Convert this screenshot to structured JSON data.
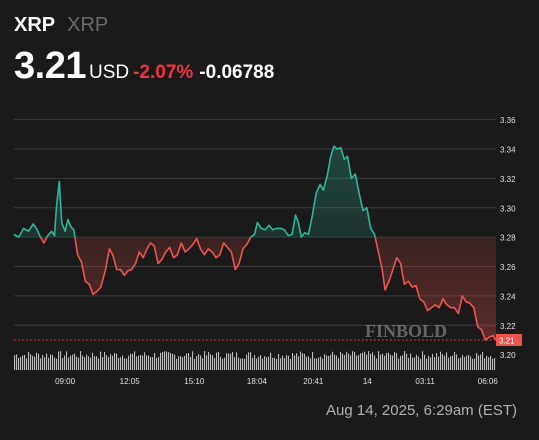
{
  "header": {
    "symbol": "XRP",
    "symbol_sub": "XRP",
    "price": "3.21",
    "currency": "USD",
    "change_pct": "-2.07%",
    "change_abs": "-0.06788"
  },
  "footer": {
    "timestamp": "Aug 14, 2025, 6:29am (EST)"
  },
  "colors": {
    "background": "#1a1a1a",
    "up": "#2fb59a",
    "down": "#ef5350",
    "pct_negative": "#ef3340",
    "grid": "#3a3a3a",
    "volume": "#d9d9d9",
    "axis_text": "#e0e0e0"
  },
  "watermark": "FINBOLD",
  "chart_data": {
    "type": "line",
    "reference_price": 3.28,
    "current_price": 3.21,
    "current_price_label": "3.21",
    "ylim": [
      3.195,
      3.37
    ],
    "y_ticks": [
      3.36,
      3.34,
      3.32,
      3.3,
      3.28,
      3.26,
      3.24,
      3.22,
      3.2
    ],
    "y_tick_labels": [
      "3.36",
      "3.34",
      "3.32",
      "3.30",
      "3.28",
      "3.26",
      "3.24",
      "3.22",
      "3.20"
    ],
    "x_ticks": [
      {
        "label": "09:00",
        "t": 0.106
      },
      {
        "label": "12:05",
        "t": 0.24
      },
      {
        "label": "15:10",
        "t": 0.374
      },
      {
        "label": "18:04",
        "t": 0.504
      },
      {
        "label": "20:41",
        "t": 0.621
      },
      {
        "label": "14",
        "t": 0.733
      },
      {
        "label": "03:11",
        "t": 0.853
      },
      {
        "label": "06:06",
        "t": 0.983
      }
    ],
    "series": [
      {
        "points": [
          [
            0.0,
            3.282
          ],
          [
            0.01,
            3.28
          ],
          [
            0.02,
            3.286
          ],
          [
            0.03,
            3.284
          ],
          [
            0.04,
            3.289
          ],
          [
            0.048,
            3.285
          ],
          [
            0.055,
            3.28
          ],
          [
            0.062,
            3.276
          ],
          [
            0.07,
            3.281
          ],
          [
            0.078,
            3.284
          ],
          [
            0.084,
            3.281
          ],
          [
            0.088,
            3.3
          ],
          [
            0.094,
            3.318
          ],
          [
            0.099,
            3.29
          ],
          [
            0.106,
            3.284
          ],
          [
            0.112,
            3.292
          ],
          [
            0.118,
            3.287
          ],
          [
            0.124,
            3.285
          ],
          [
            0.132,
            3.268
          ],
          [
            0.14,
            3.263
          ],
          [
            0.148,
            3.25
          ],
          [
            0.156,
            3.248
          ],
          [
            0.164,
            3.241
          ],
          [
            0.172,
            3.243
          ],
          [
            0.18,
            3.246
          ],
          [
            0.19,
            3.258
          ],
          [
            0.198,
            3.272
          ],
          [
            0.205,
            3.268
          ],
          [
            0.213,
            3.258
          ],
          [
            0.221,
            3.258
          ],
          [
            0.229,
            3.254
          ],
          [
            0.236,
            3.257
          ],
          [
            0.244,
            3.258
          ],
          [
            0.252,
            3.262
          ],
          [
            0.26,
            3.27
          ],
          [
            0.268,
            3.266
          ],
          [
            0.276,
            3.272
          ],
          [
            0.283,
            3.276
          ],
          [
            0.291,
            3.274
          ],
          [
            0.299,
            3.262
          ],
          [
            0.307,
            3.265
          ],
          [
            0.315,
            3.27
          ],
          [
            0.323,
            3.273
          ],
          [
            0.331,
            3.266
          ],
          [
            0.339,
            3.268
          ],
          [
            0.347,
            3.276
          ],
          [
            0.355,
            3.27
          ],
          [
            0.363,
            3.272
          ],
          [
            0.371,
            3.275
          ],
          [
            0.379,
            3.279
          ],
          [
            0.387,
            3.272
          ],
          [
            0.395,
            3.268
          ],
          [
            0.403,
            3.272
          ],
          [
            0.411,
            3.27
          ],
          [
            0.419,
            3.266
          ],
          [
            0.427,
            3.268
          ],
          [
            0.435,
            3.276
          ],
          [
            0.443,
            3.273
          ],
          [
            0.451,
            3.27
          ],
          [
            0.459,
            3.258
          ],
          [
            0.467,
            3.262
          ],
          [
            0.475,
            3.272
          ],
          [
            0.483,
            3.275
          ],
          [
            0.491,
            3.28
          ],
          [
            0.499,
            3.282
          ],
          [
            0.505,
            3.29
          ],
          [
            0.513,
            3.286
          ],
          [
            0.521,
            3.285
          ],
          [
            0.529,
            3.288
          ],
          [
            0.537,
            3.285
          ],
          [
            0.545,
            3.286
          ],
          [
            0.553,
            3.286
          ],
          [
            0.561,
            3.285
          ],
          [
            0.569,
            3.281
          ],
          [
            0.577,
            3.282
          ],
          [
            0.584,
            3.295
          ],
          [
            0.59,
            3.29
          ],
          [
            0.596,
            3.28
          ],
          [
            0.603,
            3.283
          ],
          [
            0.611,
            3.282
          ],
          [
            0.619,
            3.295
          ],
          [
            0.627,
            3.31
          ],
          [
            0.635,
            3.316
          ],
          [
            0.642,
            3.312
          ],
          [
            0.65,
            3.322
          ],
          [
            0.657,
            3.335
          ],
          [
            0.664,
            3.342
          ],
          [
            0.671,
            3.34
          ],
          [
            0.678,
            3.341
          ],
          [
            0.685,
            3.333
          ],
          [
            0.692,
            3.335
          ],
          [
            0.7,
            3.32
          ],
          [
            0.708,
            3.323
          ],
          [
            0.716,
            3.31
          ],
          [
            0.724,
            3.298
          ],
          [
            0.732,
            3.3
          ],
          [
            0.74,
            3.286
          ],
          [
            0.748,
            3.282
          ],
          [
            0.756,
            3.27
          ],
          [
            0.764,
            3.258
          ],
          [
            0.77,
            3.244
          ],
          [
            0.778,
            3.25
          ],
          [
            0.786,
            3.258
          ],
          [
            0.794,
            3.266
          ],
          [
            0.802,
            3.262
          ],
          [
            0.81,
            3.248
          ],
          [
            0.818,
            3.25
          ],
          [
            0.826,
            3.246
          ],
          [
            0.834,
            3.247
          ],
          [
            0.842,
            3.238
          ],
          [
            0.85,
            3.236
          ],
          [
            0.858,
            3.23
          ],
          [
            0.866,
            3.232
          ],
          [
            0.874,
            3.234
          ],
          [
            0.882,
            3.232
          ],
          [
            0.89,
            3.238
          ],
          [
            0.898,
            3.234
          ],
          [
            0.906,
            3.232
          ],
          [
            0.914,
            3.232
          ],
          [
            0.922,
            3.228
          ],
          [
            0.93,
            3.24
          ],
          [
            0.938,
            3.236
          ],
          [
            0.946,
            3.235
          ],
          [
            0.954,
            3.232
          ],
          [
            0.962,
            3.219
          ],
          [
            0.97,
            3.217
          ],
          [
            0.978,
            3.21
          ],
          [
            0.986,
            3.212
          ],
          [
            0.994,
            3.213
          ],
          [
            1.0,
            3.21
          ]
        ]
      }
    ]
  }
}
